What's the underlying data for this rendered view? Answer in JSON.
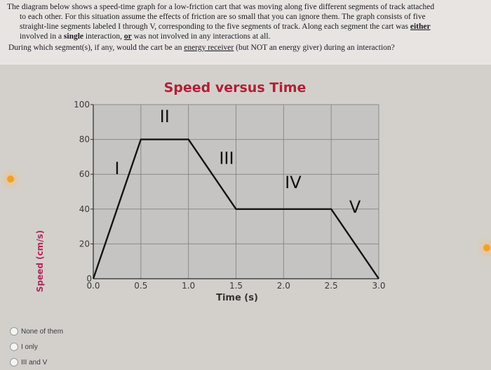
{
  "question": {
    "line1": "The diagram below shows a speed-time graph for a low-friction cart that was moving along five different segments of track attached",
    "line2": "to each other.  For this situation assume the effects of friction are so small that you can ignore them.  The graph consists of five",
    "line3a": "straight-line segments labeled I through V, corresponding to the five segments of track.  Along each segment the cart was ",
    "line3_either": "either",
    "line4a": "involved in a ",
    "line4_single": "single",
    "line4b": " interaction, ",
    "line4_or": "or",
    "line4c": " was not involved in any interactions at all.",
    "ask_a": "During which segment(s), if any, would the cart be an ",
    "ask_receiver": "energy receiver",
    "ask_b": " (but NOT an energy giver) during an interaction?"
  },
  "chart_data": {
    "type": "line",
    "title": "Speed versus Time",
    "xlabel": "Time (s)",
    "ylabel": "Speed (cm/s)",
    "xlim": [
      0,
      3.0
    ],
    "ylim": [
      0,
      100
    ],
    "x_ticks": [
      "0.0",
      "0.5",
      "1.0",
      "1.5",
      "2.0",
      "2.5",
      "3.0"
    ],
    "y_ticks": [
      "0",
      "20",
      "40",
      "60",
      "80",
      "100"
    ],
    "grid": true,
    "series": [
      {
        "x": [
          0,
          0.5,
          1.0,
          1.5,
          2.0,
          2.5,
          3.0
        ],
        "y": [
          0,
          80,
          80,
          40,
          40,
          40,
          0
        ]
      }
    ],
    "segment_labels": [
      {
        "text": "I",
        "x": 0.25,
        "y": 60
      },
      {
        "text": "II",
        "x": 0.75,
        "y": 90
      },
      {
        "text": "III",
        "x": 1.4,
        "y": 66
      },
      {
        "text": "IV",
        "x": 2.1,
        "y": 52
      },
      {
        "text": "V",
        "x": 2.75,
        "y": 38
      }
    ],
    "colors": {
      "line": "#141414",
      "grid": "#8a8a8a",
      "title": "#b02035",
      "plot_bg": "#c6c4c2"
    }
  },
  "options": [
    {
      "label": "None of them"
    },
    {
      "label": "I only"
    },
    {
      "label": "III and V"
    }
  ]
}
